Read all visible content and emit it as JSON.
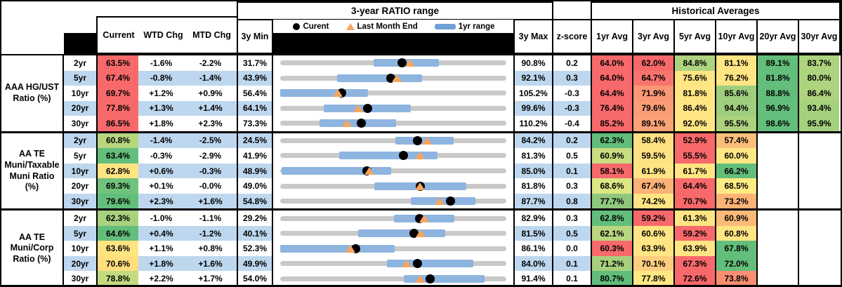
{
  "header": {
    "chart_title": "3-year RATIO range",
    "hist_title": "Historical Averages",
    "col_current": "Current",
    "col_wtd": "WTD Chg",
    "col_mtd": "MTD Chg",
    "col_min": "3y Min",
    "col_max": "3y Max",
    "col_z": "z-score",
    "avg_cols": [
      "1yr Avg",
      "3yr Avg",
      "5yr Avg",
      "10yr Avg",
      "20yr Avg",
      "30yr Avg"
    ],
    "legend": [
      {
        "marker": "black-dot",
        "label": "Curent"
      },
      {
        "marker": "orange-triangle",
        "label": "Last Month End"
      },
      {
        "marker": "blue-bar",
        "label": "1yr range"
      }
    ]
  },
  "colors": {
    "band": "#BDD7EE",
    "red": "#F8696B",
    "yellow": "#FFE583",
    "green": "#63BE7B",
    "track": "#C9C9C9",
    "range_bar": "#8EB4E0",
    "triangle": "#F5A55F"
  },
  "chart_data": {
    "type": "table",
    "note": "bar/dot/tri are percent positions along the 3y min-max track",
    "groups": [
      {
        "label": "AAA HG/UST\nRatio (%)",
        "rows": [
          {
            "tenor": "2yr",
            "current": "63.5%",
            "currentBg": "#F8696B",
            "wtd": "-1.6%",
            "mtd": "-2.2%",
            "band": false,
            "min": "31.7%",
            "max": "90.8%",
            "z": "0.2",
            "bar": [
              41.4,
              70.2
            ],
            "dot": 53.8,
            "tri": 57.5,
            "avgs": [
              "64.0%",
              "62.0%",
              "84.8%",
              "81.1%",
              "89.1%",
              "83.7%"
            ],
            "avgBgs": [
              "#F8696B",
              "#F8696B",
              "#AED37F",
              "#FFE583",
              "#63BE7B",
              "#AED37F"
            ]
          },
          {
            "tenor": "5yr",
            "current": "67.4%",
            "currentBg": "#F8696B",
            "wtd": "-0.8%",
            "mtd": "-1.4%",
            "band": true,
            "min": "43.9%",
            "max": "92.1%",
            "z": "0.3",
            "bar": [
              25.3,
              62.6
            ],
            "dot": 48.8,
            "tri": 51.7,
            "avgs": [
              "64.0%",
              "64.7%",
              "75.6%",
              "76.2%",
              "81.8%",
              "80.0%"
            ],
            "avgBgs": [
              "#F8696B",
              "#F8756D",
              "#FFE583",
              "#FFE583",
              "#63BE7B",
              "#AED37F"
            ]
          },
          {
            "tenor": "10yr",
            "current": "69.7%",
            "currentBg": "#F8696B",
            "wtd": "+1.2%",
            "mtd": "+0.9%",
            "band": false,
            "min": "56.4%",
            "max": "105.2%",
            "z": "-0.3",
            "bar": [
              0,
              38.7
            ],
            "dot": 27.3,
            "tri": 25.4,
            "avgs": [
              "64.4%",
              "71.9%",
              "81.8%",
              "85.6%",
              "88.8%",
              "86.4%"
            ],
            "avgBgs": [
              "#F8696B",
              "#FA9774",
              "#FFE583",
              "#9FCE7E",
              "#63BE7B",
              "#AED37F"
            ]
          },
          {
            "tenor": "20yr",
            "current": "77.8%",
            "currentBg": "#F8696B",
            "wtd": "+1.3%",
            "mtd": "+1.4%",
            "band": true,
            "min": "64.1%",
            "max": "99.6%",
            "z": "-0.3",
            "bar": [
              19.4,
              57.9
            ],
            "dot": 38.6,
            "tri": 34.6,
            "avgs": [
              "76.4%",
              "79.6%",
              "86.4%",
              "94.4%",
              "96.9%",
              "93.4%"
            ],
            "avgBgs": [
              "#F8696B",
              "#FA9E75",
              "#FFE583",
              "#9FCE7E",
              "#63BE7B",
              "#A5D07E"
            ]
          },
          {
            "tenor": "30yr",
            "current": "86.5%",
            "currentBg": "#F8696B",
            "wtd": "+1.8%",
            "mtd": "+2.3%",
            "band": false,
            "min": "73.3%",
            "max": "110.2%",
            "z": "-0.4",
            "bar": [
              17.4,
              51.2
            ],
            "dot": 35.8,
            "tri": 29.5,
            "avgs": [
              "85.2%",
              "89.1%",
              "92.0%",
              "95.5%",
              "98.6%",
              "95.9%"
            ],
            "avgBgs": [
              "#F8696B",
              "#FAA376",
              "#FFE583",
              "#ACD27F",
              "#63BE7B",
              "#A5D07E"
            ]
          }
        ]
      },
      {
        "label": "AA TE\nMuni/Taxable\nMuni Ratio\n(%)",
        "rows": [
          {
            "tenor": "2yr",
            "current": "60.8%",
            "currentBg": "#B7D77F",
            "wtd": "-1.4%",
            "mtd": "-2.5%",
            "band": true,
            "min": "24.5%",
            "max": "84.2%",
            "z": "0.2",
            "bar": [
              51.0,
              76.8
            ],
            "dot": 60.8,
            "tri": 65.0,
            "avgs": [
              "62.3%",
              "58.4%",
              "52.9%",
              "57.4%",
              null,
              null
            ],
            "avgBgs": [
              "#63BE7B",
              "#FFE182",
              "#F8696B",
              "#FCBF7B",
              null,
              null
            ]
          },
          {
            "tenor": "5yr",
            "current": "63.4%",
            "currentBg": "#63BE7B",
            "wtd": "-0.3%",
            "mtd": "-2.9%",
            "band": false,
            "min": "41.9%",
            "max": "81.3%",
            "z": "0.5",
            "bar": [
              26.0,
              69.7
            ],
            "dot": 54.6,
            "tri": 61.9,
            "avgs": [
              "60.9%",
              "59.5%",
              "55.5%",
              "60.0%",
              null,
              null
            ],
            "avgBgs": [
              "#C9DD81",
              "#FFE283",
              "#F8696B",
              "#FFE884",
              null,
              null
            ]
          },
          {
            "tenor": "10yr",
            "current": "62.8%",
            "currentBg": "#FFE582",
            "wtd": "+0.6%",
            "mtd": "-0.3%",
            "band": true,
            "min": "48.9%",
            "max": "85.0%",
            "z": "0.1",
            "bar": [
              0.5,
              49.0
            ],
            "dot": 38.5,
            "tri": 39.3,
            "avgs": [
              "58.1%",
              "61.9%",
              "61.7%",
              "66.2%",
              null,
              null
            ],
            "avgBgs": [
              "#F8696B",
              "#FFE583",
              "#FFE583",
              "#63BE7B",
              null,
              null
            ]
          },
          {
            "tenor": "20yr",
            "current": "69.3%",
            "currentBg": "#70C27C",
            "wtd": "+0.1%",
            "mtd": "-0.0%",
            "band": false,
            "min": "49.0%",
            "max": "81.8%",
            "z": "0.3",
            "bar": [
              41.7,
              82.3
            ],
            "dot": 61.9,
            "tri": 61.9,
            "avgs": [
              "68.6%",
              "67.4%",
              "64.4%",
              "68.5%",
              null,
              null
            ],
            "avgBgs": [
              "#DCE683",
              "#FBB277",
              "#F8696B",
              "#FFEB84",
              null,
              null
            ]
          },
          {
            "tenor": "30yr",
            "current": "79.6%",
            "currentBg": "#63BE7B",
            "wtd": "+2.3%",
            "mtd": "+1.6%",
            "band": true,
            "min": "54.8%",
            "max": "87.7%",
            "z": "0.8",
            "bar": [
              57.9,
              86.4
            ],
            "dot": 75.4,
            "tri": 70.5,
            "avgs": [
              "77.7%",
              "74.2%",
              "70.7%",
              "73.2%",
              null,
              null
            ],
            "avgBgs": [
              "#8FC87D",
              "#FFE583",
              "#F8696B",
              "#FBB377",
              null,
              null
            ]
          }
        ]
      },
      {
        "label": "AA TE\nMuni/Corp\nRatio (%)",
        "rows": [
          {
            "tenor": "2yr",
            "current": "62.3%",
            "currentBg": "#A9D17E",
            "wtd": "-1.0%",
            "mtd": "-1.1%",
            "band": false,
            "min": "29.2%",
            "max": "82.9%",
            "z": "0.3",
            "bar": [
              50.2,
              77.0
            ],
            "dot": 61.6,
            "tri": 63.7,
            "avgs": [
              "62.8%",
              "59.2%",
              "61.3%",
              "60.9%",
              null,
              null
            ],
            "avgBgs": [
              "#63BE7B",
              "#F8696B",
              "#FFE583",
              "#FCBA79",
              null,
              null
            ]
          },
          {
            "tenor": "5yr",
            "current": "64.6%",
            "currentBg": "#63BE7B",
            "wtd": "+0.4%",
            "mtd": "-1.2%",
            "band": true,
            "min": "40.1%",
            "max": "81.5%",
            "z": "0.5",
            "bar": [
              34.5,
              73.0
            ],
            "dot": 59.2,
            "tri": 62.1,
            "avgs": [
              "62.1%",
              "60.6%",
              "59.2%",
              "60.8%",
              null,
              null
            ],
            "avgBgs": [
              "#B9D780",
              "#FFE583",
              "#F8696B",
              "#FFE583",
              null,
              null
            ]
          },
          {
            "tenor": "10yr",
            "current": "63.6%",
            "currentBg": "#FFE482",
            "wtd": "+1.1%",
            "mtd": "+0.8%",
            "band": false,
            "min": "52.3%",
            "max": "86.1%",
            "z": "0.0",
            "bar": [
              0,
              50.7
            ],
            "dot": 33.4,
            "tri": 31.1,
            "avgs": [
              "60.3%",
              "63.9%",
              "63.9%",
              "67.8%",
              null,
              null
            ],
            "avgBgs": [
              "#F8696B",
              "#FFE583",
              "#FFE583",
              "#63BE7B",
              null,
              null
            ]
          },
          {
            "tenor": "20yr",
            "current": "70.6%",
            "currentBg": "#FFDE7D",
            "wtd": "+1.8%",
            "mtd": "+1.6%",
            "band": true,
            "min": "49.9%",
            "max": "84.0%",
            "z": "0.1",
            "bar": [
              47.2,
              85.4
            ],
            "dot": 60.7,
            "tri": 56.0,
            "avgs": [
              "71.2%",
              "70.1%",
              "67.3%",
              "72.0%",
              null,
              null
            ],
            "avgBgs": [
              "#A7D07E",
              "#FDCE7E",
              "#F8696B",
              "#63BE7B",
              null,
              null
            ]
          },
          {
            "tenor": "30yr",
            "current": "78.8%",
            "currentBg": "#C3DB80",
            "wtd": "+2.2%",
            "mtd": "+1.7%",
            "band": false,
            "min": "54.0%",
            "max": "91.4%",
            "z": "0.1",
            "bar": [
              54.7,
              90.4
            ],
            "dot": 66.3,
            "tri": 61.8,
            "avgs": [
              "80.7%",
              "77.8%",
              "72.6%",
              "73.8%",
              null,
              null
            ],
            "avgBgs": [
              "#63BE7B",
              "#FFE884",
              "#F8696B",
              "#F98E71",
              null,
              null
            ]
          }
        ]
      }
    ]
  }
}
